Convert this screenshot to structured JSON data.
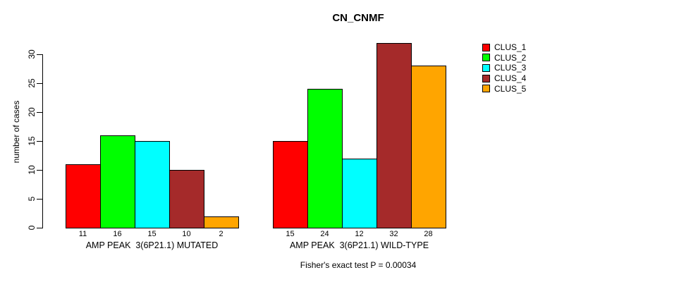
{
  "title": "CN_CNMF",
  "ylabel": "number of cases",
  "footer": "Fisher's exact test P = 0.00034",
  "chart_data": {
    "type": "bar",
    "title": "CN_CNMF",
    "xlabel": "",
    "ylabel": "number of cases",
    "annotation": "Fisher's exact test P = 0.00034",
    "ylim": [
      0,
      30
    ],
    "yticks": [
      0,
      5,
      10,
      15,
      20,
      25,
      30
    ],
    "grid": false,
    "legend_position": "right",
    "bar_value_labels": true,
    "categories": [
      "AMP PEAK  3(6P21.1) MUTATED",
      "AMP PEAK  3(6P21.1) WILD-TYPE"
    ],
    "series": [
      {
        "name": "CLUS_1",
        "color": "#FF0000",
        "values": [
          11,
          15
        ]
      },
      {
        "name": "CLUS_2",
        "color": "#00FF00",
        "values": [
          16,
          24
        ]
      },
      {
        "name": "CLUS_3",
        "color": "#00FFFF",
        "values": [
          15,
          12
        ]
      },
      {
        "name": "CLUS_4",
        "color": "#A52A2A",
        "values": [
          10,
          32
        ]
      },
      {
        "name": "CLUS_5",
        "color": "#FFA500",
        "values": [
          2,
          28
        ]
      }
    ]
  }
}
